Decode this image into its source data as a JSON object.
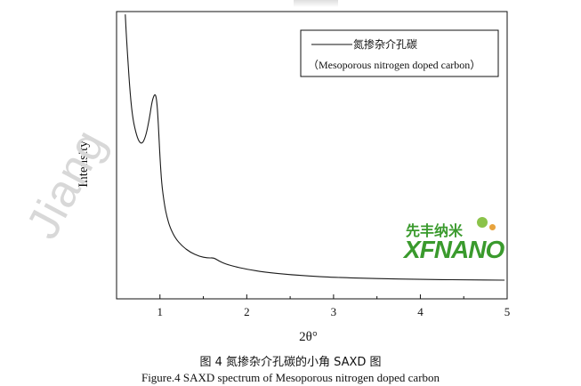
{
  "chart_data": {
    "type": "line",
    "xlabel": "2θ°",
    "ylabel": "Intensity",
    "xlim": [
      0.5,
      5
    ],
    "ylim": [
      0,
      100
    ],
    "x_ticks": [
      1,
      2,
      3,
      4,
      5
    ],
    "x_tick_labels": [
      "1",
      "2",
      "3",
      "4",
      "5"
    ],
    "grid": false,
    "legend": {
      "placement": "top-right",
      "entries": [
        "氮掺杂介孔碳",
        "（Mesoporous nitrogen doped carbon）"
      ]
    },
    "series": [
      {
        "name": "氮掺杂介孔碳",
        "x": [
          0.6,
          0.62,
          0.65,
          0.68,
          0.72,
          0.76,
          0.8,
          0.84,
          0.88,
          0.91,
          0.94,
          0.96,
          0.98,
          1.0,
          1.02,
          1.05,
          1.08,
          1.12,
          1.18,
          1.25,
          1.35,
          1.45,
          1.55,
          1.62,
          1.68,
          1.75,
          1.85,
          2.0,
          2.2,
          2.5,
          2.8,
          3.0,
          3.5,
          4.0,
          4.5,
          4.97
        ],
        "y": [
          99,
          88,
          74,
          64,
          58,
          54.5,
          54,
          57,
          63,
          69,
          71.5,
          70,
          62,
          49,
          40,
          33,
          28.5,
          24.5,
          21,
          18.5,
          16.2,
          14.8,
          14.2,
          14.3,
          13.2,
          12.2,
          11.3,
          10.3,
          9.3,
          8.4,
          7.8,
          7.5,
          7.0,
          6.8,
          6.6,
          6.5
        ]
      }
    ]
  },
  "captions": {
    "cn": "图 4  氮掺杂介孔碳的小角 SAXD 图",
    "en": "Figure.4 SAXD spectrum of Mesoporous nitrogen doped carbon"
  },
  "watermark": {
    "text": "Jiang",
    "logo_cn": "先丰纳米",
    "logo_en": "XFNANO"
  },
  "colors": {
    "line": "#1a1a1a",
    "logo_green": "#3a9a2d"
  }
}
